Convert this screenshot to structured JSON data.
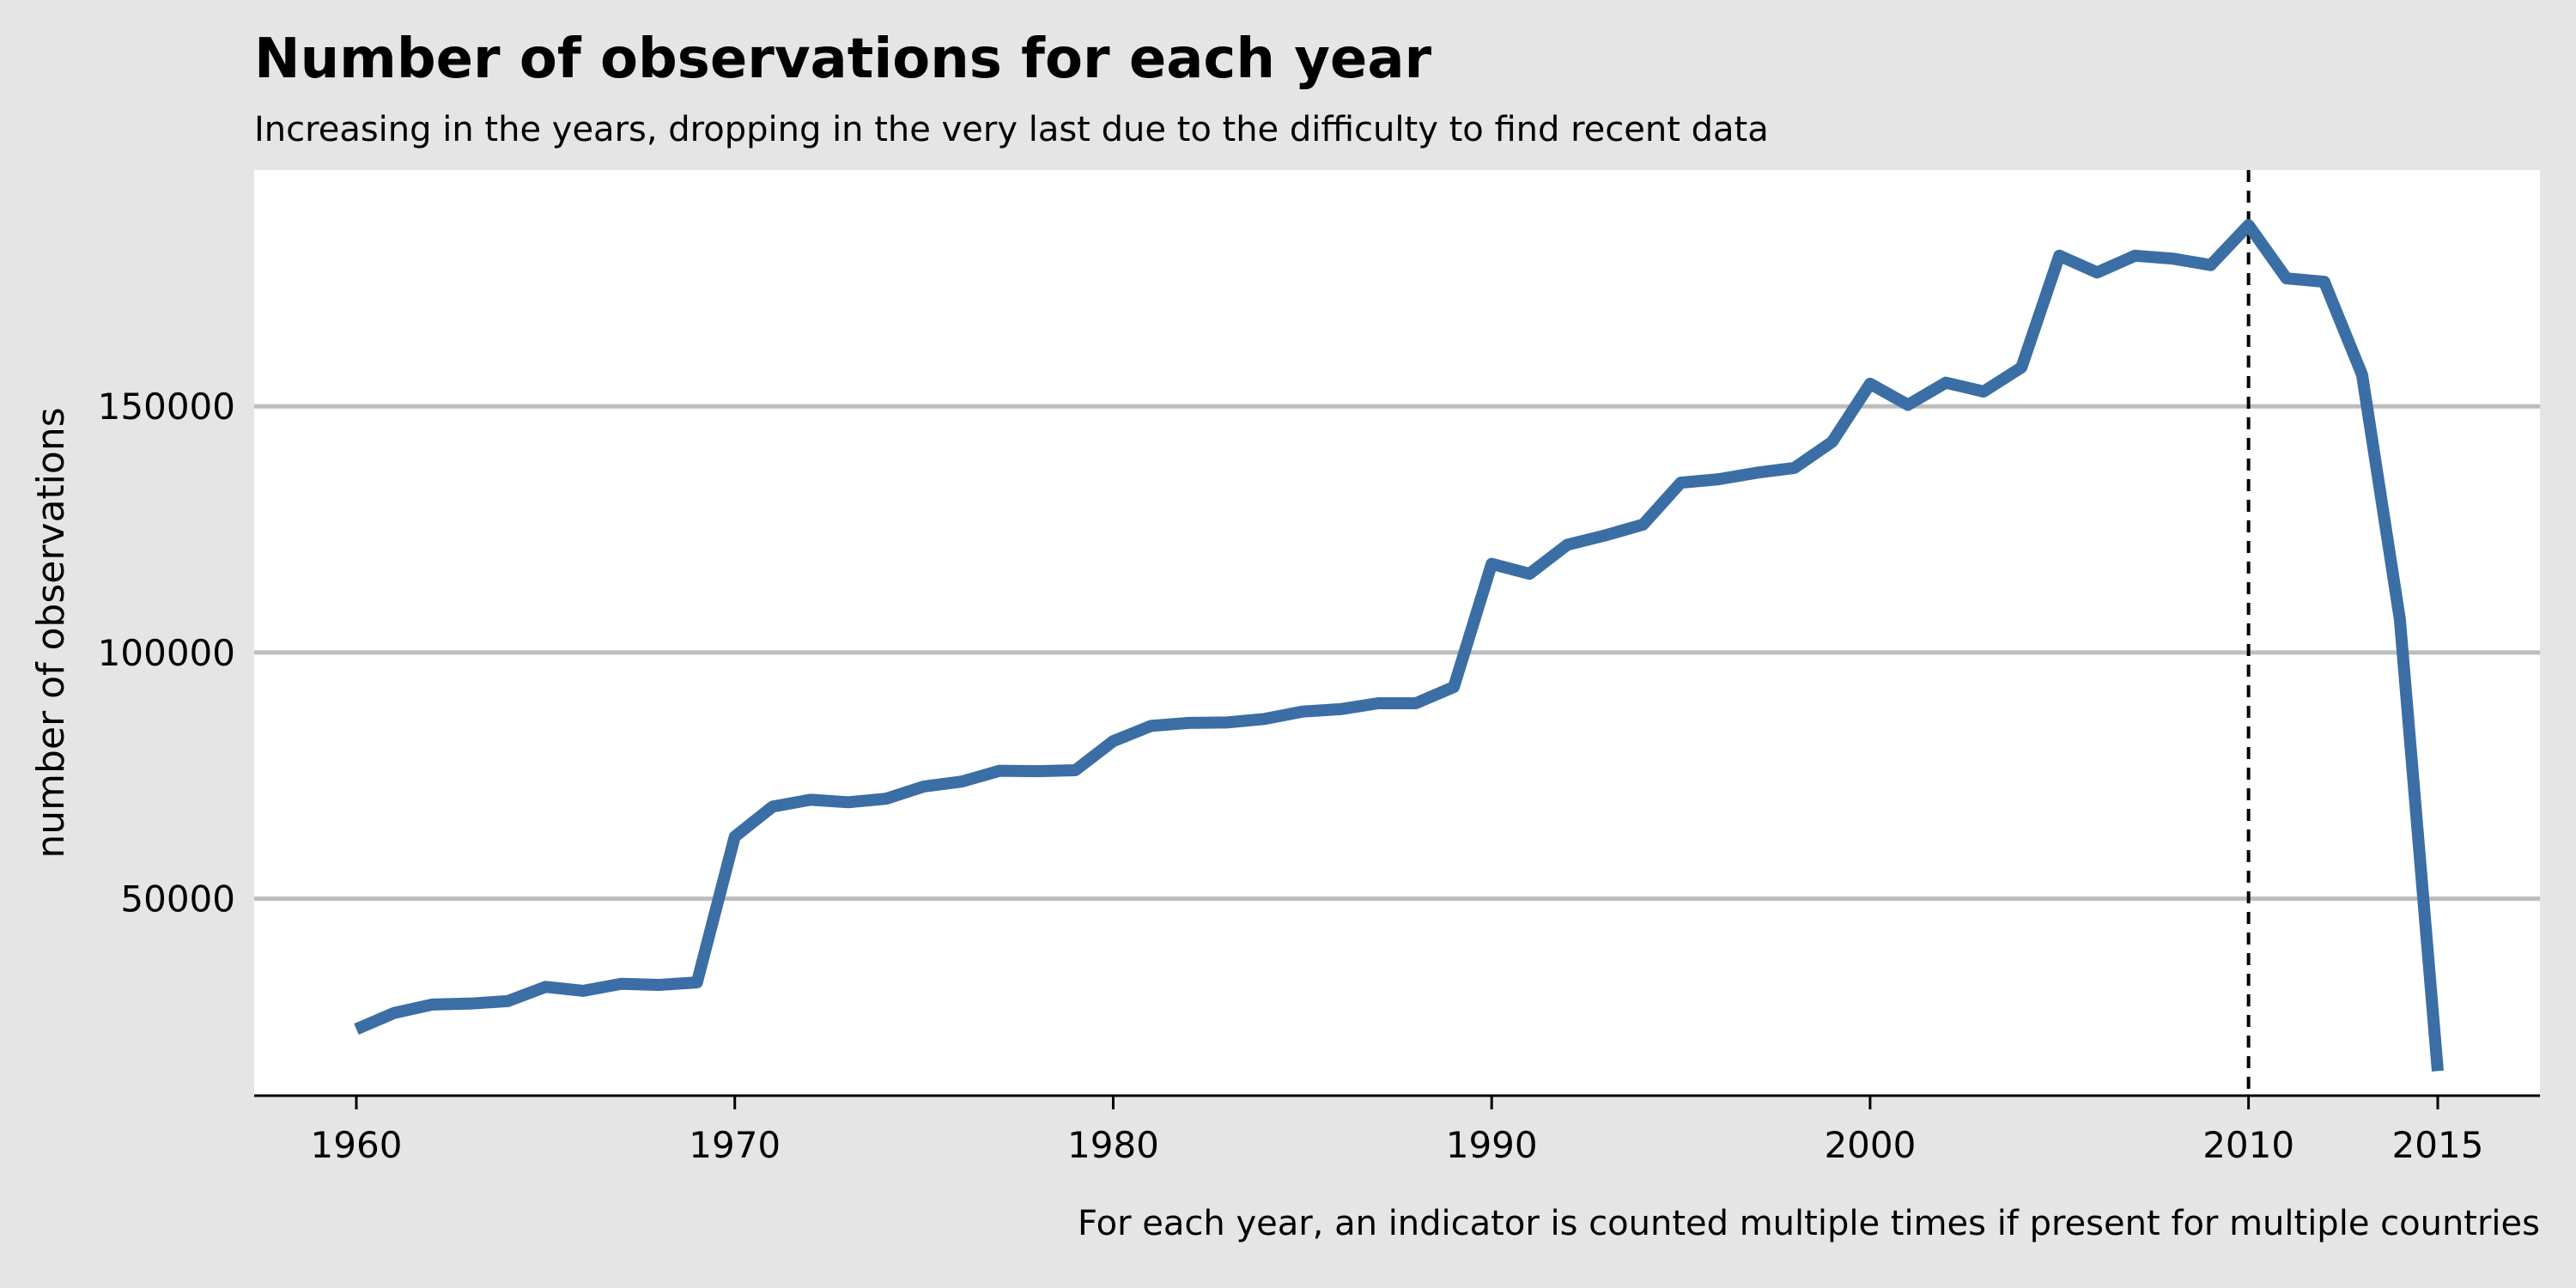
{
  "chart_data": {
    "type": "line",
    "title": "Number of observations for each year",
    "subtitle": "Increasing in the years, dropping in the very last due to the difficulty to find recent data",
    "caption": "For each year, an indicator is counted multiple times if present for multiple countries",
    "xlabel": "",
    "ylabel": "number of observations",
    "x_ticks": [
      1960,
      1970,
      1980,
      1990,
      2000,
      2010,
      2015
    ],
    "y_ticks": [
      50000,
      100000,
      150000
    ],
    "xlim": [
      1957.3,
      2017.7
    ],
    "ylim": [
      10000,
      198000
    ],
    "grid": "horizontal",
    "reference_line": {
      "x": 2010,
      "style": "dashed"
    },
    "colors": {
      "line": "#3a6ea5",
      "grid": "#bdbdbd",
      "panel": "#ffffff",
      "background": "#e5e5e5"
    },
    "series": [
      {
        "x": [
          1960,
          1961,
          1962,
          1963,
          1964,
          1965,
          1966,
          1967,
          1968,
          1969,
          1970,
          1971,
          1972,
          1973,
          1974,
          1975,
          1976,
          1977,
          1978,
          1979,
          1980,
          1981,
          1982,
          1983,
          1984,
          1985,
          1986,
          1987,
          1988,
          1989,
          1990,
          1991,
          1992,
          1993,
          1994,
          1995,
          1996,
          1997,
          1998,
          1999,
          2000,
          2001,
          2002,
          2003,
          2004,
          2005,
          2006,
          2007,
          2008,
          2009,
          2010,
          2011,
          2012,
          2013,
          2014,
          2015
        ],
        "y": [
          23500,
          26800,
          28500,
          28700,
          29200,
          32100,
          31300,
          32700,
          32500,
          33000,
          62600,
          68700,
          70100,
          69600,
          70300,
          72800,
          73800,
          76000,
          75900,
          76100,
          82000,
          85100,
          85700,
          85800,
          86500,
          88000,
          88500,
          89700,
          89700,
          93000,
          118000,
          116000,
          121900,
          123800,
          126000,
          134500,
          135200,
          136500,
          137500,
          142800,
          154600,
          150300,
          154800,
          153000,
          157900,
          180600,
          177200,
          180600,
          180000,
          178700,
          186800,
          176000,
          175300,
          156400,
          106700,
          15000
        ]
      }
    ]
  }
}
